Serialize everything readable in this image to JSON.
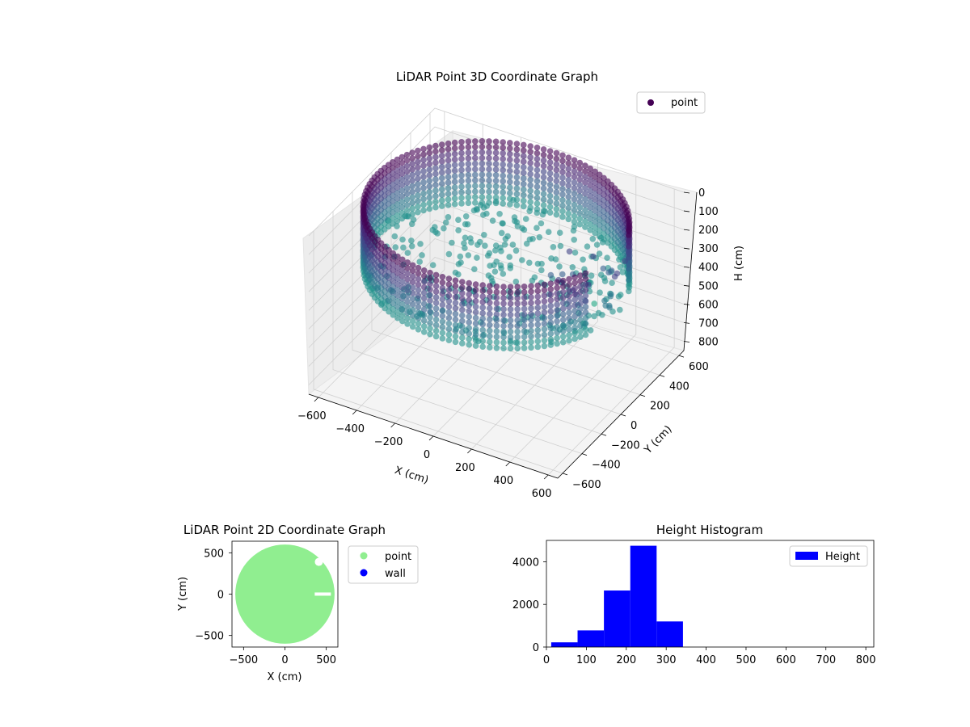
{
  "chart_data": [
    {
      "type": "scatter",
      "projection": "3d",
      "title": "LiDAR Point 3D Coordinate Graph",
      "xlabel": "X (cm)",
      "ylabel": "Y (cm)",
      "zlabel": "H (cm)",
      "xlim": [
        -650,
        650
      ],
      "ylim": [
        -650,
        650
      ],
      "zlim": [
        0,
        850
      ],
      "z_inverted": true,
      "xticks": [
        -600,
        -400,
        -200,
        0,
        200,
        400,
        600
      ],
      "yticks": [
        -600,
        -400,
        -200,
        0,
        200,
        400,
        600
      ],
      "zticks": [
        0,
        100,
        200,
        300,
        400,
        500,
        600,
        700,
        800
      ],
      "grid": true,
      "legend": {
        "position": "upper-right",
        "entries": [
          {
            "label": "point",
            "color": "#440154"
          }
        ]
      },
      "colormap": "viridis",
      "series": [
        {
          "name": "point",
          "shape": "cylindrical wall",
          "radius_cm": 620,
          "height_range_cm": [
            0,
            330
          ],
          "floor_z_cm": 330,
          "gap_angle_deg": [
            -20,
            20
          ]
        }
      ]
    },
    {
      "type": "scatter",
      "title": "LiDAR Point 2D Coordinate Graph",
      "xlabel": "X (cm)",
      "ylabel": "Y (cm)",
      "xlim": [
        -640,
        640
      ],
      "ylim": [
        -640,
        640
      ],
      "xticks": [
        -500,
        0,
        500
      ],
      "yticks": [
        -500,
        0,
        500
      ],
      "legend": {
        "position": "outside-right",
        "entries": [
          {
            "label": "point",
            "color": "#90ee90"
          },
          {
            "label": "wall",
            "color": "#0000ff"
          }
        ]
      },
      "series": [
        {
          "name": "point",
          "color": "#90ee90",
          "shape": "filled disc",
          "radius_cm": 600
        }
      ]
    },
    {
      "type": "bar",
      "subtype": "histogram",
      "title": "Height Histogram",
      "xlim": [
        0,
        820
      ],
      "ylim": [
        0,
        5000
      ],
      "xticks": [
        0,
        100,
        200,
        300,
        400,
        500,
        600,
        700,
        800
      ],
      "yticks": [
        0,
        2000,
        4000
      ],
      "legend": {
        "position": "upper-right",
        "entries": [
          {
            "label": "Height",
            "color": "#0000ff"
          }
        ]
      },
      "bin_edges": [
        12,
        78,
        144,
        210,
        276,
        342
      ],
      "values": [
        220,
        780,
        2650,
        4750,
        1200
      ],
      "color": "#0000ff"
    }
  ]
}
